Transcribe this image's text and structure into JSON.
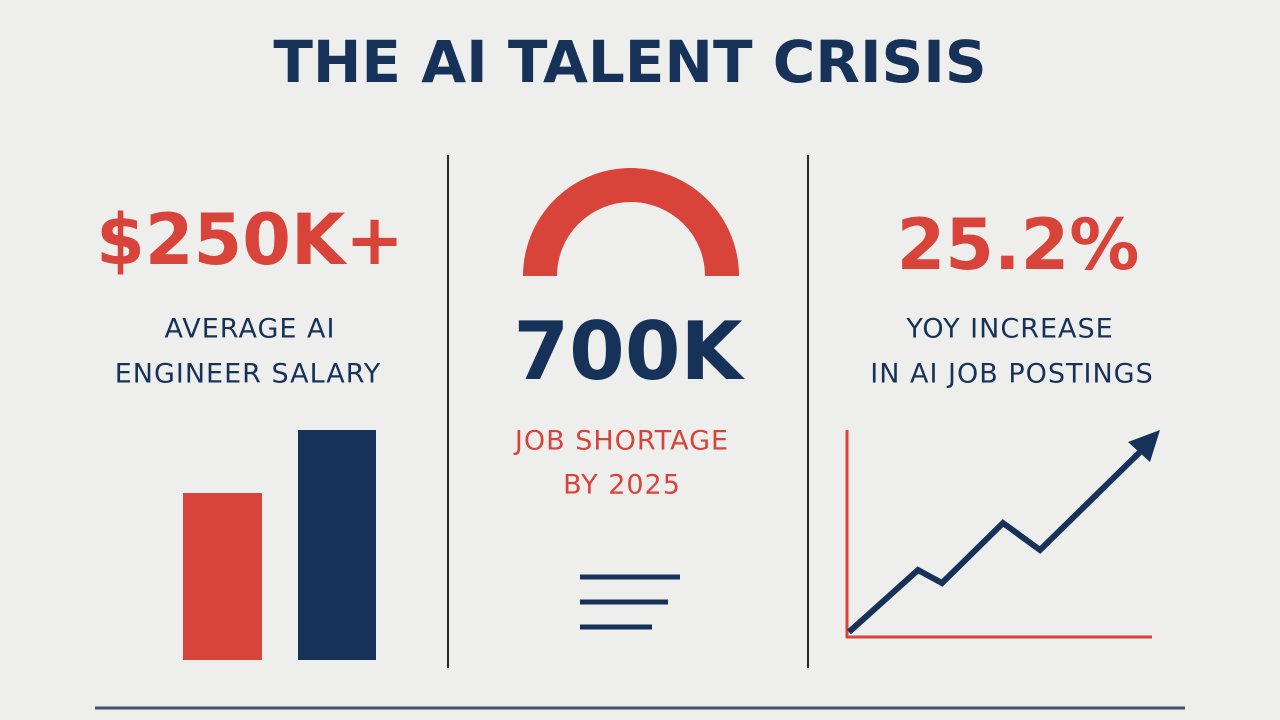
{
  "title": "THE AI TALENT CRISIS",
  "panels": [
    {
      "stat": "$250K+",
      "label": [
        "AVERAGE AI",
        "ENGINEER SALARY"
      ]
    },
    {
      "stat": "700K",
      "label": [
        "JOB SHORTAGE",
        "BY 2025"
      ]
    },
    {
      "stat": "25.2%",
      "label": [
        "YOY INCREASE",
        "IN AI JOB POSTINGS"
      ]
    }
  ]
}
